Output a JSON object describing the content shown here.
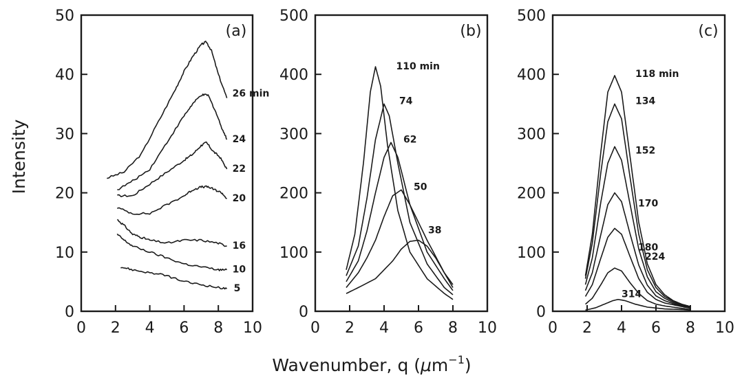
{
  "chart_data": [
    {
      "type": "line",
      "panel": "(a)",
      "ylabel": "Intensity",
      "xlim": [
        0,
        10
      ],
      "ylim": [
        0,
        50
      ],
      "xticks": [
        0,
        2,
        4,
        6,
        8,
        10
      ],
      "yticks": [
        0,
        10,
        20,
        30,
        40,
        50
      ],
      "series": [
        {
          "name": "26 min",
          "label": "26 min",
          "x": [
            1.5,
            2.5,
            3.5,
            4.5,
            5.5,
            6.0,
            6.5,
            7.0,
            7.3,
            7.6,
            8.0,
            8.5
          ],
          "y": [
            22.5,
            23.5,
            26.5,
            32.0,
            37.5,
            40.5,
            43.0,
            45.0,
            45.5,
            44.0,
            40.0,
            36.0
          ]
        },
        {
          "name": "24",
          "label": "24",
          "x": [
            2.1,
            3.0,
            4.0,
            5.0,
            6.0,
            6.5,
            7.0,
            7.4,
            7.8,
            8.2,
            8.5
          ],
          "y": [
            20.5,
            22.0,
            24.0,
            28.5,
            33.0,
            35.0,
            36.5,
            36.5,
            34.0,
            31.0,
            29.0
          ]
        },
        {
          "name": "22",
          "label": "22",
          "x": [
            2.1,
            3.0,
            4.0,
            5.0,
            6.0,
            6.5,
            7.0,
            7.3,
            7.7,
            8.1,
            8.5
          ],
          "y": [
            19.5,
            19.5,
            21.5,
            23.5,
            25.5,
            26.5,
            28.0,
            28.5,
            27.0,
            26.0,
            24.0
          ]
        },
        {
          "name": "20",
          "label": "20",
          "x": [
            2.1,
            3.0,
            4.0,
            5.0,
            6.0,
            6.5,
            7.0,
            7.4,
            7.8,
            8.2,
            8.5
          ],
          "y": [
            17.5,
            16.5,
            16.5,
            18.0,
            19.5,
            20.5,
            21.0,
            21.0,
            20.5,
            20.0,
            19.0
          ]
        },
        {
          "name": "16",
          "label": "16",
          "x": [
            2.1,
            2.5,
            3.0,
            3.5,
            4.0,
            5.0,
            6.0,
            7.0,
            8.0,
            8.5
          ],
          "y": [
            15.5,
            14.5,
            13.0,
            12.5,
            12.0,
            11.5,
            12.0,
            12.0,
            11.5,
            11.0
          ]
        },
        {
          "name": "10",
          "label": "10",
          "x": [
            2.1,
            2.5,
            3.0,
            4.0,
            5.0,
            6.0,
            7.0,
            8.0,
            8.5
          ],
          "y": [
            13.0,
            12.0,
            11.0,
            10.0,
            9.0,
            8.0,
            7.5,
            7.0,
            7.0
          ]
        },
        {
          "name": "5",
          "label": "5",
          "x": [
            2.3,
            3.0,
            4.0,
            5.0,
            6.0,
            7.0,
            8.0,
            8.5
          ],
          "y": [
            7.5,
            7.0,
            6.5,
            6.0,
            5.0,
            4.5,
            4.0,
            3.8
          ]
        }
      ]
    },
    {
      "type": "line",
      "panel": "(b)",
      "xlim": [
        0,
        10
      ],
      "ylim": [
        0,
        500
      ],
      "xticks": [
        0,
        2,
        4,
        6,
        8,
        10
      ],
      "yticks": [
        0,
        100,
        200,
        300,
        400,
        500
      ],
      "series": [
        {
          "name": "110 min",
          "label": "110 min",
          "x": [
            1.8,
            2.3,
            2.8,
            3.2,
            3.5,
            3.8,
            4.2,
            4.8,
            5.5,
            6.5,
            7.5,
            8.0
          ],
          "y": [
            70,
            130,
            250,
            370,
            413,
            380,
            280,
            170,
            100,
            55,
            30,
            20
          ]
        },
        {
          "name": "74",
          "label": "74",
          "x": [
            1.8,
            2.5,
            3.0,
            3.5,
            4.0,
            4.3,
            4.8,
            5.5,
            6.5,
            7.5,
            8.0
          ],
          "y": [
            60,
            110,
            190,
            290,
            350,
            330,
            250,
            150,
            80,
            40,
            28
          ]
        },
        {
          "name": "62",
          "label": "62",
          "x": [
            1.8,
            2.5,
            3.0,
            3.5,
            4.0,
            4.4,
            4.8,
            5.5,
            6.5,
            7.5,
            8.0
          ],
          "y": [
            50,
            85,
            135,
            200,
            260,
            285,
            260,
            180,
            100,
            55,
            35
          ]
        },
        {
          "name": "50",
          "label": "50",
          "x": [
            1.8,
            2.5,
            3.0,
            3.5,
            4.0,
            4.5,
            5.0,
            5.5,
            6.5,
            7.5,
            8.0
          ],
          "y": [
            40,
            65,
            90,
            120,
            160,
            195,
            205,
            180,
            120,
            65,
            45
          ]
        },
        {
          "name": "38",
          "label": "38",
          "x": [
            1.8,
            2.5,
            3.5,
            4.5,
            5.0,
            5.5,
            6.0,
            6.5,
            7.0,
            7.5,
            8.0
          ],
          "y": [
            30,
            40,
            55,
            85,
            105,
            118,
            120,
            110,
            90,
            65,
            40
          ]
        }
      ]
    },
    {
      "type": "line",
      "panel": "(c)",
      "xlim": [
        0,
        10
      ],
      "ylim": [
        0,
        500
      ],
      "xticks": [
        0,
        2,
        4,
        6,
        8,
        10
      ],
      "yticks": [
        0,
        100,
        200,
        300,
        400,
        500
      ],
      "series": [
        {
          "name": "118 min",
          "label": "118 min",
          "x": [
            1.9,
            2.3,
            2.8,
            3.2,
            3.6,
            4.0,
            4.5,
            5.0,
            5.5,
            6.0,
            6.5,
            7.0,
            7.5,
            8.0
          ],
          "y": [
            60,
            130,
            270,
            370,
            398,
            370,
            260,
            150,
            80,
            45,
            28,
            18,
            12,
            8
          ]
        },
        {
          "name": "134",
          "label": "134",
          "x": [
            1.9,
            2.3,
            2.8,
            3.2,
            3.6,
            4.0,
            4.5,
            5.0,
            5.5,
            6.0,
            6.5,
            7.0,
            7.5,
            8.0
          ],
          "y": [
            55,
            115,
            235,
            320,
            350,
            325,
            225,
            130,
            70,
            40,
            25,
            17,
            11,
            7
          ]
        },
        {
          "name": "152",
          "label": "152",
          "x": [
            1.9,
            2.3,
            2.8,
            3.2,
            3.6,
            4.0,
            4.5,
            5.0,
            5.5,
            6.0,
            6.5,
            7.0,
            7.5,
            8.0
          ],
          "y": [
            45,
            90,
            185,
            250,
            278,
            255,
            180,
            105,
            58,
            33,
            22,
            15,
            10,
            6
          ]
        },
        {
          "name": "170",
          "label": "170",
          "x": [
            1.9,
            2.3,
            2.8,
            3.2,
            3.6,
            4.0,
            4.5,
            5.0,
            5.5,
            6.0,
            6.5,
            7.0,
            7.5,
            8.0
          ],
          "y": [
            35,
            65,
            130,
            180,
            200,
            185,
            130,
            78,
            44,
            26,
            18,
            13,
            9,
            5
          ]
        },
        {
          "name": "180",
          "label": "180",
          "x": [
            1.9,
            2.3,
            2.8,
            3.2,
            3.6,
            4.0,
            4.5,
            5.0,
            5.5,
            6.0,
            6.5,
            7.0,
            7.5,
            8.0
          ],
          "y": [
            25,
            45,
            90,
            125,
            140,
            130,
            92,
            55,
            32,
            20,
            14,
            11,
            8,
            5
          ]
        },
        {
          "name": "224",
          "label": "224",
          "x": [
            1.9,
            2.3,
            2.8,
            3.2,
            3.6,
            4.0,
            4.5,
            5.0,
            5.5,
            6.0,
            6.5,
            7.0,
            7.5,
            8.0
          ],
          "y": [
            12,
            22,
            45,
            65,
            73,
            68,
            48,
            30,
            18,
            12,
            9,
            7,
            5,
            3
          ]
        },
        {
          "name": "314",
          "label": "314",
          "x": [
            1.9,
            2.5,
            3.0,
            3.5,
            3.8,
            4.2,
            4.8,
            5.5,
            6.5,
            7.5,
            8.0
          ],
          "y": [
            2,
            6,
            12,
            18,
            20,
            18,
            12,
            7,
            4,
            3,
            2
          ]
        }
      ]
    }
  ],
  "shared_axes": {
    "ylabel": "Intensity",
    "xlabel_prefix": "Wavenumber, q (",
    "xlabel_unit_mu": "μ",
    "xlabel_unit_m": "m",
    "xlabel_unit_exp": "−1",
    "xlabel_suffix": ")"
  }
}
